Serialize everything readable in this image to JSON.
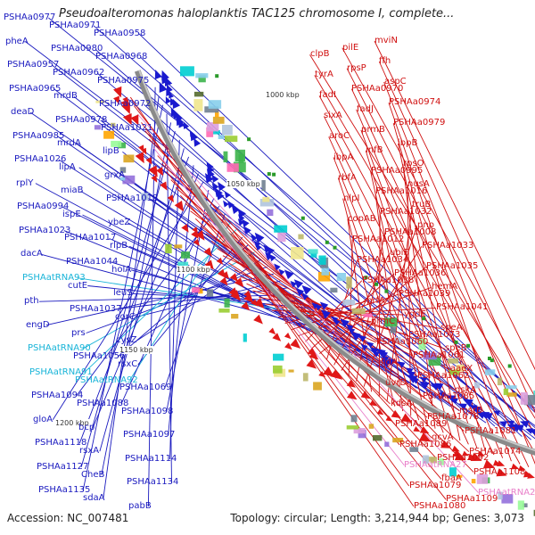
{
  "title": "Pseudoalteromonas haloplanktis TAC125 chromosome I, complete...",
  "footer": {
    "accession": "Accession: NC_007481",
    "summary": "Topology: circular; Length: 3,214,944 bp; Genes: 3,073"
  },
  "scale_labels": [
    "1000 kbp",
    "1050 kbp",
    "1100 kbp",
    "1150 kbp",
    "1200 kbp"
  ],
  "colors": {
    "forward": "#1a1abf",
    "reverse": "#d01010",
    "rna_forward": "#18b4d8",
    "rna_reverse": "#e97fc9"
  },
  "labels_left": [
    {
      "text": "PSHAa0977",
      "color": "blue"
    },
    {
      "text": "PSHAa0971",
      "color": "blue"
    },
    {
      "text": "PSHAa0958",
      "color": "blue"
    },
    {
      "text": "pheA",
      "color": "blue"
    },
    {
      "text": "PSHAa0980",
      "color": "blue"
    },
    {
      "text": "PSHAa0968",
      "color": "blue"
    },
    {
      "text": "PSHAa0957",
      "color": "blue"
    },
    {
      "text": "PSHAa0962",
      "color": "blue"
    },
    {
      "text": "PSHAa0975",
      "color": "blue"
    },
    {
      "text": "PSHAa0965",
      "color": "blue"
    },
    {
      "text": "mrdB",
      "color": "blue"
    },
    {
      "text": "PSHAa0972",
      "color": "blue"
    },
    {
      "text": "deaD",
      "color": "blue"
    },
    {
      "text": "PSHAa0978",
      "color": "blue"
    },
    {
      "text": "PSHAa1021",
      "color": "blue"
    },
    {
      "text": "PSHAa0985",
      "color": "blue"
    },
    {
      "text": "mrdA",
      "color": "blue"
    },
    {
      "text": "lipB",
      "color": "blue"
    },
    {
      "text": "PSHAa1026",
      "color": "blue"
    },
    {
      "text": "lipA",
      "color": "blue"
    },
    {
      "text": "grxA",
      "color": "blue"
    },
    {
      "text": "rplY",
      "color": "blue"
    },
    {
      "text": "miaB",
      "color": "blue"
    },
    {
      "text": "PSHAa1018",
      "color": "blue"
    },
    {
      "text": "PSHAa0994",
      "color": "blue"
    },
    {
      "text": "ispE",
      "color": "blue"
    },
    {
      "text": "ybeZ",
      "color": "blue"
    },
    {
      "text": "PSHAa1023",
      "color": "blue"
    },
    {
      "text": "PSHAa1017",
      "color": "blue"
    },
    {
      "text": "rlpB",
      "color": "blue"
    },
    {
      "text": "dacA",
      "color": "blue"
    },
    {
      "text": "PSHAa1044",
      "color": "blue"
    },
    {
      "text": "holA",
      "color": "blue"
    },
    {
      "text": "PSHAatRNA93",
      "color": "cyan"
    },
    {
      "text": "cutE",
      "color": "blue"
    },
    {
      "text": "leuS",
      "color": "blue"
    },
    {
      "text": "pth",
      "color": "blue"
    },
    {
      "text": "PSHAa1037",
      "color": "blue"
    },
    {
      "text": "corC",
      "color": "blue"
    },
    {
      "text": "engD",
      "color": "blue"
    },
    {
      "text": "prs",
      "color": "blue"
    },
    {
      "text": "cysZ",
      "color": "blue"
    },
    {
      "text": "PSHAatRNA90",
      "color": "cyan"
    },
    {
      "text": "PSHAa1056",
      "color": "blue"
    },
    {
      "text": "rsxC",
      "color": "blue"
    },
    {
      "text": "PSHAatRNA91",
      "color": "cyan"
    },
    {
      "text": "PSHAatRNA92",
      "color": "cyan"
    },
    {
      "text": "PSHAa1069",
      "color": "blue"
    },
    {
      "text": "PSHAa1094",
      "color": "blue"
    },
    {
      "text": "PSHAa1088",
      "color": "blue"
    },
    {
      "text": "PSHAa1098",
      "color": "blue"
    },
    {
      "text": "gloA",
      "color": "blue"
    },
    {
      "text": "bcp",
      "color": "blue"
    },
    {
      "text": "PSHAa1097",
      "color": "blue"
    },
    {
      "text": "PSHAa1118",
      "color": "blue"
    },
    {
      "text": "rsxA",
      "color": "blue"
    },
    {
      "text": "PSHAa1114",
      "color": "blue"
    },
    {
      "text": "PSHAa1127",
      "color": "blue"
    },
    {
      "text": "CheB",
      "color": "blue"
    },
    {
      "text": "PSHAa1134",
      "color": "blue"
    },
    {
      "text": "PSHAa1135",
      "color": "blue"
    },
    {
      "text": "sdaA",
      "color": "blue"
    },
    {
      "text": "pabB",
      "color": "blue"
    }
  ],
  "labels_right": [
    {
      "text": "mviN",
      "color": "red"
    },
    {
      "text": "pilE",
      "color": "red"
    },
    {
      "text": "clpB",
      "color": "red"
    },
    {
      "text": "ffh",
      "color": "red"
    },
    {
      "text": "rpsP",
      "color": "red"
    },
    {
      "text": "tyrA",
      "color": "red"
    },
    {
      "text": "aspC",
      "color": "red"
    },
    {
      "text": "PSHAa0970",
      "color": "red"
    },
    {
      "text": "fadI",
      "color": "red"
    },
    {
      "text": "PSHAa0974",
      "color": "red"
    },
    {
      "text": "fadJ",
      "color": "red"
    },
    {
      "text": "sixA",
      "color": "red"
    },
    {
      "text": "PSHAa0979",
      "color": "red"
    },
    {
      "text": "prmB",
      "color": "red"
    },
    {
      "text": "aroC",
      "color": "red"
    },
    {
      "text": "ibpB",
      "color": "red"
    },
    {
      "text": "infB",
      "color": "red"
    },
    {
      "text": "ibpA",
      "color": "red"
    },
    {
      "text": "rpsO",
      "color": "red"
    },
    {
      "text": "PSHAa0995",
      "color": "red"
    },
    {
      "text": "rbfA",
      "color": "red"
    },
    {
      "text": "nusA",
      "color": "red"
    },
    {
      "text": "PSHAa1016",
      "color": "red"
    },
    {
      "text": "nlpI",
      "color": "red"
    },
    {
      "text": "truB",
      "color": "red"
    },
    {
      "text": "PSHAa1032",
      "color": "red"
    },
    {
      "text": "copAB",
      "color": "red"
    },
    {
      "text": "pnp",
      "color": "red"
    },
    {
      "text": "PSHAa1008",
      "color": "red"
    },
    {
      "text": "PSHAa1012",
      "color": "red"
    },
    {
      "text": "PSHAa1033",
      "color": "red"
    },
    {
      "text": "ubiF",
      "color": "red"
    },
    {
      "text": "PSHAa1034",
      "color": "red"
    },
    {
      "text": "PSHAa1035",
      "color": "red"
    },
    {
      "text": "PSHAa1036",
      "color": "red"
    },
    {
      "text": "PSHAa1038",
      "color": "red"
    },
    {
      "text": "hemA",
      "color": "red"
    },
    {
      "text": "PSHAa1039",
      "color": "red"
    },
    {
      "text": "prfA",
      "color": "red"
    },
    {
      "text": "PSHAa1041",
      "color": "red"
    },
    {
      "text": "ygdE",
      "color": "red"
    },
    {
      "text": "prmC",
      "color": "red"
    },
    {
      "text": "speA",
      "color": "red"
    },
    {
      "text": "PSHAa1073",
      "color": "red"
    },
    {
      "text": "PSHAa1060",
      "color": "red"
    },
    {
      "text": "speB",
      "color": "red"
    },
    {
      "text": "PSHAa1061",
      "color": "red"
    },
    {
      "text": "ligA",
      "color": "red"
    },
    {
      "text": "aaeX",
      "color": "red"
    },
    {
      "text": "PSHAa1062",
      "color": "red"
    },
    {
      "text": "uvrD",
      "color": "red"
    },
    {
      "text": "dskA",
      "color": "red"
    },
    {
      "text": "PSHAa1085",
      "color": "red"
    },
    {
      "text": "kdsA",
      "color": "red"
    },
    {
      "text": "msrB",
      "color": "red"
    },
    {
      "text": "PSHAa1078",
      "color": "red"
    },
    {
      "text": "PSHAa1089",
      "color": "red"
    },
    {
      "text": "PSHAa1081",
      "color": "red"
    },
    {
      "text": "gcvA",
      "color": "red"
    },
    {
      "text": "PSHAa1086",
      "color": "red"
    },
    {
      "text": "PSHAa1074",
      "color": "red"
    },
    {
      "text": "PSHAa1092",
      "color": "red"
    },
    {
      "text": "PSHAatRNA27",
      "color": "pink"
    },
    {
      "text": "PSHAa1108",
      "color": "red"
    },
    {
      "text": "fbaA",
      "color": "red"
    },
    {
      "text": "PSHAa1079",
      "color": "red"
    },
    {
      "text": "PSHAatRNA26",
      "color": "pink"
    },
    {
      "text": "PSHAa1109",
      "color": "red"
    },
    {
      "text": "PSHAa1080",
      "color": "red"
    }
  ]
}
